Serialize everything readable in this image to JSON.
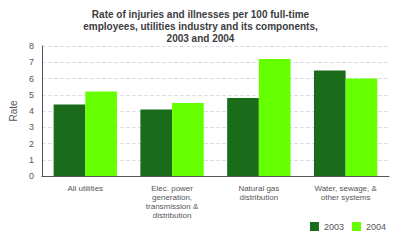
{
  "chart_data": {
    "type": "bar",
    "title": "Rate of injuries and illnesses per 100 full-time\nemployees, utilities industry and its components,\n2003 and 2004",
    "categories": [
      "All utilities",
      "Elec. power\ngeneration,\ntransmission &\ndistribution",
      "Natural gas\ndistribution",
      "Water, sewage, &\nother systems"
    ],
    "series": [
      {
        "name": "2003",
        "color": "#1a6b1a",
        "values": [
          4.4,
          4.1,
          4.8,
          6.5
        ]
      },
      {
        "name": "2004",
        "color": "#66ff00",
        "values": [
          5.2,
          4.5,
          7.2,
          6.0
        ]
      }
    ],
    "ylabel": "Rate",
    "ylim": [
      0,
      8
    ],
    "yticks": [
      0,
      1,
      2,
      3,
      4,
      5,
      6,
      7,
      8
    ],
    "grid": true,
    "legend": "lower right"
  }
}
